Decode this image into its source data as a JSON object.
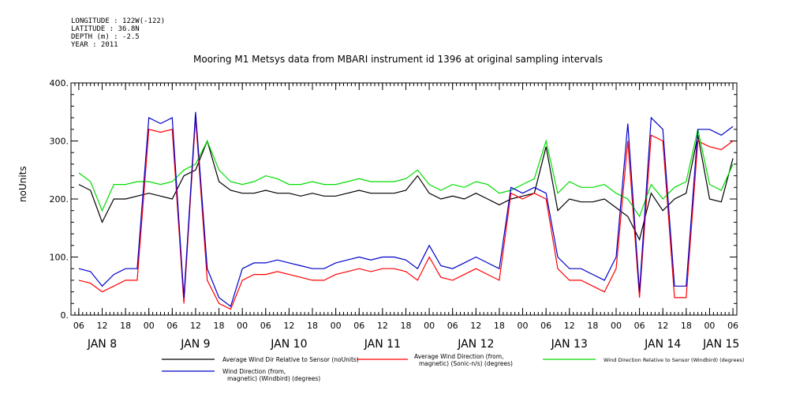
{
  "header": {
    "longitude": "LONGITUDE : 122W(-122)",
    "latitude": "LATITUDE : 36.8N",
    "depth": "DEPTH (m) : -2.5",
    "year": "YEAR : 2011"
  },
  "chart_data": {
    "type": "line",
    "title": "Mooring M1 Metsys data from MBARI instrument id 1396 at original sampling intervals",
    "ylabel": "noUnits",
    "xlabel": "",
    "ylim": [
      0,
      400
    ],
    "yticks": [
      0,
      100,
      200,
      300,
      400
    ],
    "ytick_labels": [
      "0.",
      "100.",
      "200.",
      "300.",
      "400."
    ],
    "xlim": [
      "2011-01-08T04:00",
      "2011-01-15T07:00"
    ],
    "hour_tick_labels": [
      "06",
      "12",
      "18",
      "00",
      "06",
      "12",
      "18",
      "00",
      "06",
      "12",
      "18",
      "00",
      "06",
      "12",
      "18",
      "00",
      "06",
      "12",
      "18",
      "00",
      "06",
      "12",
      "18",
      "00",
      "06",
      "12",
      "18",
      "00",
      "06"
    ],
    "day_labels": [
      {
        "label": "JAN  8",
        "at": "2011-01-08T12:00"
      },
      {
        "label": "JAN  9",
        "at": "2011-01-09T12:00"
      },
      {
        "label": "JAN 10",
        "at": "2011-01-10T12:00"
      },
      {
        "label": "JAN 11",
        "at": "2011-01-11T12:00"
      },
      {
        "label": "JAN 12",
        "at": "2011-01-12T12:00"
      },
      {
        "label": "JAN 13",
        "at": "2011-01-13T12:00"
      },
      {
        "label": "JAN 14",
        "at": "2011-01-14T12:00"
      },
      {
        "label": "JAN 15",
        "at": "2011-01-15T03:00"
      }
    ],
    "grid": false,
    "legend_position": "bottom",
    "x": [
      "2011-01-08T06:00",
      "2011-01-08T09:00",
      "2011-01-08T12:00",
      "2011-01-08T15:00",
      "2011-01-08T18:00",
      "2011-01-08T21:00",
      "2011-01-09T00:00",
      "2011-01-09T03:00",
      "2011-01-09T06:00",
      "2011-01-09T09:00",
      "2011-01-09T12:00",
      "2011-01-09T15:00",
      "2011-01-09T18:00",
      "2011-01-09T21:00",
      "2011-01-10T00:00",
      "2011-01-10T03:00",
      "2011-01-10T06:00",
      "2011-01-10T09:00",
      "2011-01-10T12:00",
      "2011-01-10T15:00",
      "2011-01-10T18:00",
      "2011-01-10T21:00",
      "2011-01-11T00:00",
      "2011-01-11T03:00",
      "2011-01-11T06:00",
      "2011-01-11T09:00",
      "2011-01-11T12:00",
      "2011-01-11T15:00",
      "2011-01-11T18:00",
      "2011-01-11T21:00",
      "2011-01-12T00:00",
      "2011-01-12T03:00",
      "2011-01-12T06:00",
      "2011-01-12T09:00",
      "2011-01-12T12:00",
      "2011-01-12T15:00",
      "2011-01-12T18:00",
      "2011-01-12T21:00",
      "2011-01-13T00:00",
      "2011-01-13T03:00",
      "2011-01-13T06:00",
      "2011-01-13T09:00",
      "2011-01-13T12:00",
      "2011-01-13T15:00",
      "2011-01-13T18:00",
      "2011-01-13T21:00",
      "2011-01-14T00:00",
      "2011-01-14T03:00",
      "2011-01-14T06:00",
      "2011-01-14T09:00",
      "2011-01-14T12:00",
      "2011-01-14T15:00",
      "2011-01-14T18:00",
      "2011-01-14T21:00",
      "2011-01-15T00:00",
      "2011-01-15T03:00",
      "2011-01-15T06:00"
    ],
    "series": [
      {
        "name": "Average Wind Dir Relative to Sensor (noUnits)",
        "color": "#000000",
        "values": [
          225,
          215,
          160,
          200,
          200,
          205,
          210,
          205,
          200,
          240,
          250,
          300,
          230,
          215,
          210,
          210,
          215,
          210,
          210,
          205,
          210,
          205,
          205,
          210,
          215,
          210,
          210,
          210,
          215,
          240,
          210,
          200,
          205,
          200,
          210,
          200,
          190,
          200,
          205,
          210,
          290,
          180,
          200,
          195,
          195,
          200,
          185,
          170,
          130,
          210,
          180,
          200,
          210,
          310,
          200,
          195,
          270
        ]
      },
      {
        "name": "Average Wind Direction (from, magnetic) (Sonic-n/s) (degrees)",
        "color": "#ff0000",
        "values": [
          60,
          55,
          40,
          50,
          60,
          60,
          320,
          315,
          320,
          20,
          340,
          60,
          20,
          10,
          60,
          70,
          70,
          75,
          70,
          65,
          60,
          60,
          70,
          75,
          80,
          75,
          80,
          80,
          75,
          60,
          100,
          65,
          60,
          70,
          80,
          70,
          60,
          210,
          200,
          210,
          200,
          80,
          60,
          60,
          50,
          40,
          80,
          300,
          30,
          310,
          300,
          30,
          30,
          300,
          290,
          285,
          300
        ]
      },
      {
        "name": "Wind Direction Relative to Sensor (Windbird) (degrees)",
        "color": "#00dd00",
        "values": [
          245,
          230,
          180,
          225,
          225,
          230,
          230,
          225,
          230,
          250,
          260,
          300,
          250,
          230,
          225,
          230,
          240,
          235,
          225,
          225,
          230,
          225,
          225,
          230,
          235,
          230,
          230,
          230,
          235,
          250,
          225,
          215,
          225,
          220,
          230,
          225,
          210,
          215,
          225,
          235,
          300,
          210,
          230,
          220,
          220,
          225,
          210,
          200,
          170,
          225,
          200,
          220,
          230,
          320,
          225,
          215,
          260
        ]
      },
      {
        "name": "Wind Direction (from, magnetic) (Windbird) (degrees)",
        "color": "#0000cc",
        "values": [
          80,
          75,
          50,
          70,
          80,
          80,
          340,
          330,
          340,
          30,
          350,
          80,
          30,
          15,
          80,
          90,
          90,
          95,
          90,
          85,
          80,
          80,
          90,
          95,
          100,
          95,
          100,
          100,
          95,
          80,
          120,
          85,
          80,
          90,
          100,
          90,
          80,
          220,
          210,
          220,
          210,
          100,
          80,
          80,
          70,
          60,
          100,
          330,
          40,
          340,
          320,
          50,
          50,
          320,
          320,
          310,
          325
        ]
      }
    ]
  },
  "legend": [
    {
      "label": "Average Wind Dir Relative to Sensor (noUnits)",
      "color": "#000000"
    },
    {
      "label": "Average Wind Direction (from,",
      "label2": "magnetic) (Sonic-n/s) (degrees)",
      "color": "#ff0000"
    },
    {
      "label": "Wind Direction Relative to Sensor (Windbird) (degrees)",
      "color": "#00dd00"
    },
    {
      "label": "Wind Direction (from,",
      "label2": "magnetic) (Windbird) (degrees)",
      "color": "#0000cc"
    }
  ]
}
